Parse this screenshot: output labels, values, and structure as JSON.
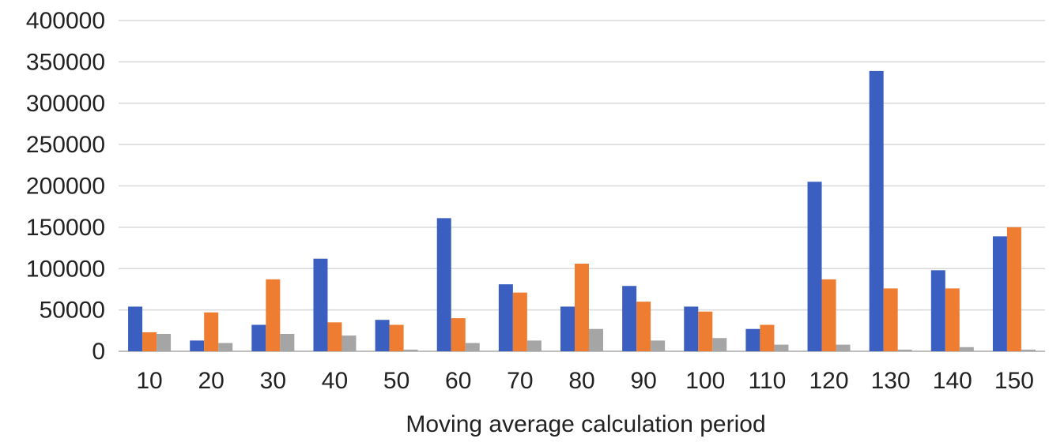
{
  "chart_data": {
    "type": "bar",
    "title": "",
    "xlabel": "Moving average calculation period",
    "ylabel": "",
    "ylim": [
      0,
      400000
    ],
    "yticks": [
      "0",
      "50000",
      "100000",
      "150000",
      "200000",
      "250000",
      "300000",
      "350000",
      "400000"
    ],
    "grid": true,
    "legend": "none",
    "categories": [
      "10",
      "20",
      "30",
      "40",
      "50",
      "60",
      "70",
      "80",
      "90",
      "100",
      "110",
      "120",
      "130",
      "140",
      "150"
    ],
    "series": [
      {
        "color": "#3b5fc0",
        "values": [
          54000,
          13000,
          32000,
          112000,
          38000,
          161000,
          81000,
          54000,
          79000,
          54000,
          27000,
          205000,
          339000,
          98000,
          139000
        ]
      },
      {
        "color": "#ee7d31",
        "values": [
          23000,
          47000,
          87000,
          35000,
          32000,
          40000,
          71000,
          106000,
          60000,
          48000,
          32000,
          87000,
          76000,
          76000,
          150000
        ]
      },
      {
        "color": "#a5a5a5",
        "values": [
          21000,
          10000,
          21000,
          19000,
          2000,
          10000,
          13000,
          27000,
          13000,
          16000,
          8000,
          8000,
          2000,
          5000,
          2000
        ]
      }
    ]
  }
}
